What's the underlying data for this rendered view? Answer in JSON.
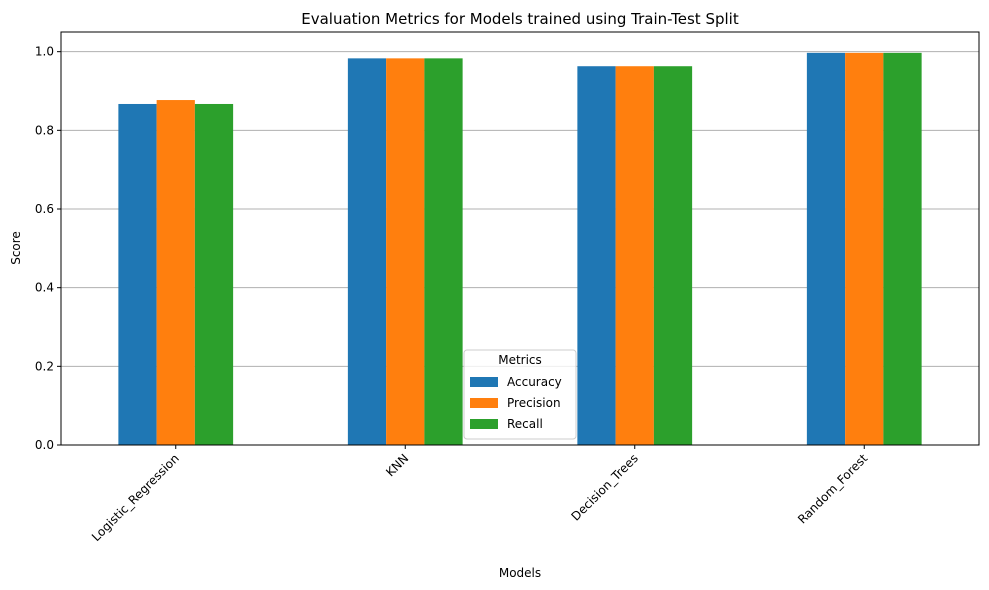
{
  "chart_data": {
    "type": "bar",
    "title": "Evaluation Metrics for Models trained using Train-Test Split",
    "xlabel": "Models",
    "ylabel": "Score",
    "ylim": [
      0,
      1.05
    ],
    "y_ticks": [
      0.0,
      0.2,
      0.4,
      0.6,
      0.8,
      1.0
    ],
    "y_tick_labels": [
      "0.0",
      "0.2",
      "0.4",
      "0.6",
      "0.8",
      "1.0"
    ],
    "grid": "y-major",
    "categories": [
      "Logistic_Regression",
      "KNN",
      "Decision_Trees",
      "Random_Forest"
    ],
    "x_tick_rotation_deg": 45,
    "series": [
      {
        "name": "Accuracy",
        "color": "#1f77b4",
        "values": [
          0.867,
          0.983,
          0.963,
          0.997
        ]
      },
      {
        "name": "Precision",
        "color": "#ff7f0e",
        "values": [
          0.877,
          0.983,
          0.963,
          0.997
        ]
      },
      {
        "name": "Recall",
        "color": "#2ca02c",
        "values": [
          0.867,
          0.983,
          0.963,
          0.997
        ]
      }
    ],
    "legend": {
      "title": "Metrics",
      "placement": "lower-center"
    }
  }
}
